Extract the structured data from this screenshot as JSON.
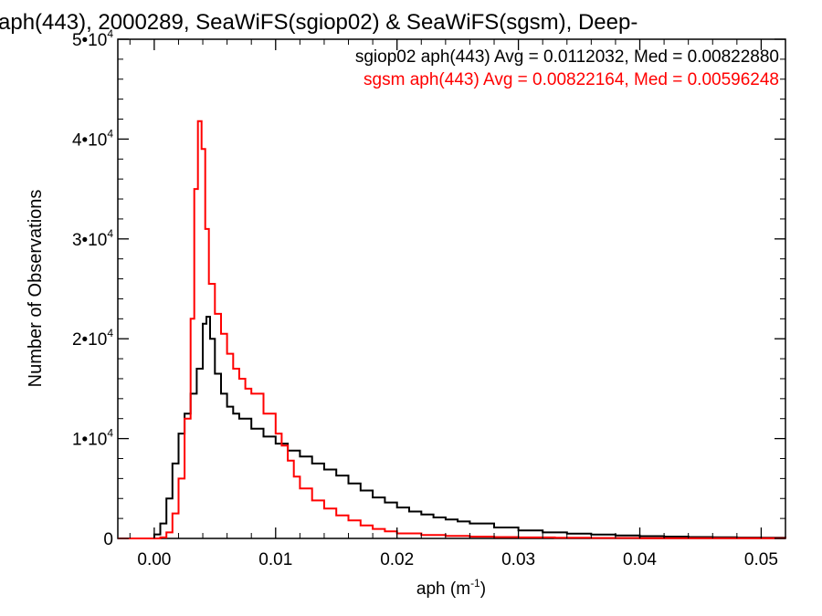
{
  "chart_data": {
    "type": "line",
    "title": "aph(443), 2000289, SeaWiFS(sgiop02) & SeaWiFS(sgsm), Deep-",
    "xlabel": "aph (m",
    "xlabel_exp": "-1",
    "xlabel_close": ")",
    "ylabel": "Number of Observations",
    "xlim": [
      -0.003,
      0.052
    ],
    "ylim": [
      0,
      50000
    ],
    "x_ticks": [
      {
        "value": 0.0,
        "label": "0.00"
      },
      {
        "value": 0.01,
        "label": "0.01"
      },
      {
        "value": 0.02,
        "label": "0.02"
      },
      {
        "value": 0.03,
        "label": "0.03"
      },
      {
        "value": 0.04,
        "label": "0.04"
      },
      {
        "value": 0.05,
        "label": "0.05"
      }
    ],
    "y_ticks": [
      {
        "value": 0,
        "mant": "0",
        "exp": ""
      },
      {
        "value": 10000,
        "mant": "1•10",
        "exp": "4"
      },
      {
        "value": 20000,
        "mant": "2•10",
        "exp": "4"
      },
      {
        "value": 30000,
        "mant": "3•10",
        "exp": "4"
      },
      {
        "value": 40000,
        "mant": "4•10",
        "exp": "4"
      },
      {
        "value": 50000,
        "mant": "5•10",
        "exp": "4"
      }
    ],
    "grid": false,
    "legend_placement": "top-right",
    "series": [
      {
        "name": "sgiop02 aph(443) Avg = 0.0112032, Med = 0.00822880",
        "color": "#000000",
        "x": [
          -0.003,
          -0.001,
          0.0,
          0.0005,
          0.001,
          0.0015,
          0.002,
          0.0025,
          0.003,
          0.0035,
          0.004,
          0.0043,
          0.0046,
          0.005,
          0.0055,
          0.006,
          0.0065,
          0.007,
          0.008,
          0.009,
          0.01,
          0.011,
          0.012,
          0.013,
          0.014,
          0.015,
          0.016,
          0.017,
          0.018,
          0.019,
          0.02,
          0.021,
          0.022,
          0.023,
          0.024,
          0.025,
          0.026,
          0.028,
          0.03,
          0.032,
          0.034,
          0.036,
          0.038,
          0.04,
          0.042,
          0.044,
          0.046,
          0.048,
          0.05,
          0.052
        ],
        "y": [
          0,
          0,
          400,
          1500,
          4000,
          7500,
          10500,
          12500,
          14500,
          17000,
          21500,
          22200,
          20000,
          16500,
          14500,
          13200,
          12500,
          12000,
          11000,
          10200,
          9500,
          8800,
          8200,
          7500,
          6900,
          6300,
          5500,
          4800,
          4100,
          3600,
          3100,
          2700,
          2400,
          2100,
          1900,
          1700,
          1500,
          1100,
          800,
          600,
          480,
          380,
          300,
          230,
          180,
          140,
          110,
          80,
          60,
          40
        ]
      },
      {
        "name": "sgsm aph(443) Avg = 0.00822164, Med = 0.00596248",
        "color": "#ff0000",
        "x": [
          -0.003,
          0.0,
          0.0005,
          0.001,
          0.0015,
          0.002,
          0.0025,
          0.003,
          0.0033,
          0.0036,
          0.0039,
          0.0042,
          0.0045,
          0.005,
          0.0055,
          0.006,
          0.0065,
          0.007,
          0.0075,
          0.008,
          0.009,
          0.01,
          0.0105,
          0.011,
          0.0115,
          0.012,
          0.013,
          0.014,
          0.015,
          0.016,
          0.017,
          0.018,
          0.019,
          0.02,
          0.022,
          0.024,
          0.026,
          0.028,
          0.03,
          0.033,
          0.036,
          0.04,
          0.045,
          0.052
        ],
        "y": [
          0,
          0,
          100,
          600,
          2500,
          6000,
          12000,
          22000,
          35000,
          41800,
          39000,
          31000,
          25500,
          22500,
          20500,
          18500,
          17000,
          16000,
          15000,
          14500,
          12500,
          10500,
          9300,
          7800,
          6200,
          5000,
          3800,
          3000,
          2300,
          1800,
          1300,
          950,
          700,
          500,
          350,
          250,
          180,
          140,
          100,
          70,
          50,
          30,
          20,
          10
        ]
      }
    ]
  }
}
